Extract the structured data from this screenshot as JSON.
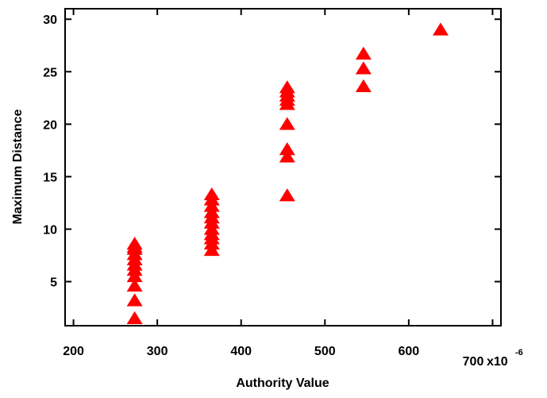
{
  "chart_data": {
    "type": "scatter",
    "title": "",
    "xlabel": "Authority Value",
    "ylabel": "Maximum Distance",
    "x_scale_label": "x10",
    "x_scale_exponent": "-6",
    "xlim": [
      190,
      710
    ],
    "ylim": [
      0.8,
      31
    ],
    "x_ticks": [
      200,
      300,
      400,
      500,
      600,
      700
    ],
    "x_tick_labels": [
      "200",
      "300",
      "400",
      "500",
      "600",
      "700"
    ],
    "y_ticks": [
      5,
      10,
      15,
      20,
      25,
      30
    ],
    "y_tick_labels": [
      "5",
      "10",
      "15",
      "20",
      "25",
      "30"
    ],
    "grid": false,
    "legend": "none",
    "marker": "triangle",
    "marker_color": "#ff0000",
    "series": [
      {
        "x": [
          273,
          273,
          273,
          273,
          273,
          273,
          273,
          273,
          273,
          273,
          273,
          365,
          365,
          365,
          365,
          365,
          365,
          365,
          365,
          365,
          365,
          365,
          455,
          455,
          455,
          455,
          455,
          455,
          455,
          455,
          455,
          546,
          546,
          546,
          638
        ],
        "y": [
          1.5,
          3.2,
          4.6,
          5.5,
          6.1,
          6.6,
          7.1,
          7.6,
          8.1,
          8.3,
          8.6,
          8.0,
          8.6,
          9.1,
          9.5,
          10.0,
          10.6,
          11.1,
          11.6,
          12.2,
          12.8,
          13.3,
          13.2,
          16.9,
          17.6,
          20.0,
          21.9,
          22.3,
          22.7,
          23.1,
          23.5,
          23.6,
          25.3,
          26.7,
          29.0
        ]
      }
    ]
  }
}
